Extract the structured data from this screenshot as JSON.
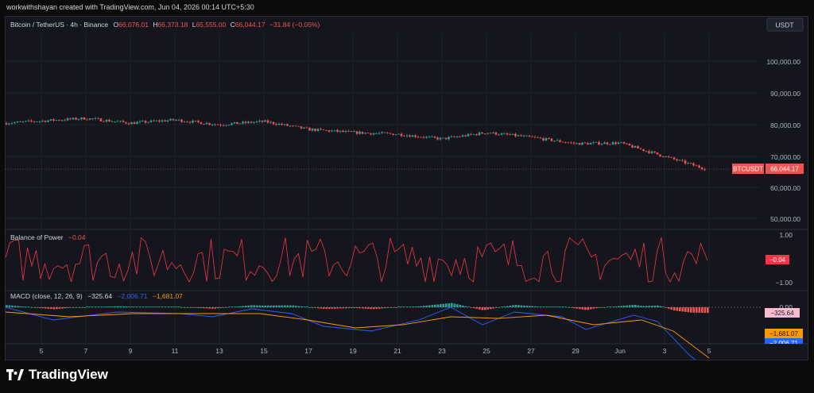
{
  "header": {
    "caption": "workwithshayan created with TradingView.com, Jun 04, 2026 00:14 UTC+5:30",
    "symbol": "Bitcoin / TetherUS · 4h · Binance",
    "o_label": "O",
    "o_val": "66,076.01",
    "h_label": "H",
    "h_val": "66,373.18",
    "l_label": "L",
    "l_val": "65,555.00",
    "c_label": "C",
    "c_val": "66,044.17",
    "change": "−31.84 (−0.05%)",
    "currency": "USDT"
  },
  "price_axis": {
    "ticks": [
      "100,000.00",
      "90,000.00",
      "80,000.00",
      "70,000.00",
      "60,000.00",
      "50,000.00"
    ]
  },
  "last_price": {
    "ticker": "BTCUSDT",
    "value": "66,044.17"
  },
  "bop": {
    "title": "Balance of Power",
    "value": "−0.04",
    "ticks": [
      "1.00",
      "−1.00"
    ],
    "badge": "−0.04"
  },
  "macd": {
    "title": "MACD (close, 12, 26, 9)",
    "hist_val": "−325.64",
    "macd_val": "−2,006.71",
    "signal_val": "−1,681.07",
    "tick": "0.00",
    "badge_hist": "−325.64",
    "badge_signal": "−1,681.07",
    "badge_macd": "−2,006.71"
  },
  "time_axis": {
    "labels": [
      "5",
      "7",
      "9",
      "11",
      "13",
      "15",
      "17",
      "19",
      "21",
      "23",
      "25",
      "27",
      "29",
      "Jun",
      "3",
      "5"
    ]
  },
  "footer": {
    "brand": "TradingView"
  },
  "colors": {
    "up": "#26a69a",
    "down": "#ef5350",
    "bop": "#f23645",
    "macd": "#2962ff",
    "signal": "#ff9800"
  },
  "chart_data": [
    {
      "type": "candlestick",
      "title": "Bitcoin / TetherUS · 4h · Binance",
      "ylim": [
        45000,
        110000
      ],
      "x": [
        "5",
        "7",
        "9",
        "11",
        "13",
        "15",
        "17",
        "19",
        "21",
        "23",
        "25",
        "27",
        "29",
        "Jun",
        "3"
      ],
      "close": [
        80500,
        82000,
        80500,
        81500,
        80000,
        81000,
        78500,
        77500,
        77000,
        75500,
        77500,
        76000,
        74000,
        74200,
        66044
      ]
    },
    {
      "type": "line",
      "title": "Balance of Power",
      "ylim": [
        -1,
        1
      ],
      "last": -0.04
    },
    {
      "type": "line",
      "title": "MACD (close, 12, 26, 9)",
      "series": [
        {
          "name": "Histogram",
          "last": -325.64
        },
        {
          "name": "MACD",
          "last": -2006.71
        },
        {
          "name": "Signal",
          "last": -1681.07
        }
      ]
    }
  ]
}
